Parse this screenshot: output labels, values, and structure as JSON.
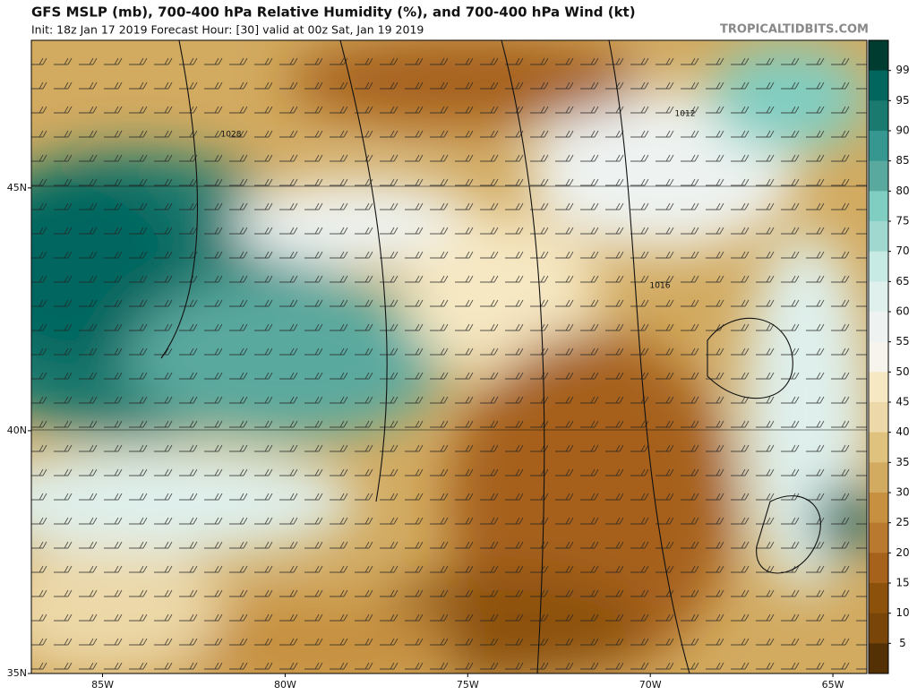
{
  "map": {
    "title": "GFS MSLP (mb), 700-400 hPa Relative Humidity (%), and 700-400 hPa Wind (kt)",
    "subtitle": "Init: 18z Jan 17 2019   Forecast Hour: [30]   valid at 00z Sat, Jan 19 2019",
    "credit": "TROPICALTIDBITS.COM",
    "xlim": [
      -86.95,
      -64.07
    ],
    "ylim": [
      35,
      48.04
    ],
    "xticks": [
      {
        "value": -85,
        "label": "85W"
      },
      {
        "value": -80,
        "label": "80W"
      },
      {
        "value": -75,
        "label": "75W"
      },
      {
        "value": -70,
        "label": "70W"
      },
      {
        "value": -65,
        "label": "65W"
      }
    ],
    "yticks": [
      {
        "value": 45,
        "label": "45N"
      },
      {
        "value": 40,
        "label": "40N"
      },
      {
        "value": 35,
        "label": "35N"
      }
    ],
    "isobar_labels": [
      "1012",
      "1016",
      "1028"
    ],
    "colorbar": {
      "ticks": [
        99,
        95,
        90,
        85,
        80,
        75,
        70,
        65,
        60,
        55,
        50,
        45,
        40,
        35,
        30,
        25,
        20,
        15,
        10,
        5
      ],
      "colors": [
        "#003c30",
        "#01665e",
        "#1a7a70",
        "#35978f",
        "#5aa99f",
        "#80cdc1",
        "#a0d8cf",
        "#c7eae5",
        "#dff0ed",
        "#eef3f1",
        "#f6f4ec",
        "#f6e8c3",
        "#ecd8a8",
        "#dfc27d",
        "#d2aa60",
        "#c69040",
        "#b97a30",
        "#a6611a",
        "#8c510a",
        "#7a4508",
        "#543005"
      ]
    }
  }
}
